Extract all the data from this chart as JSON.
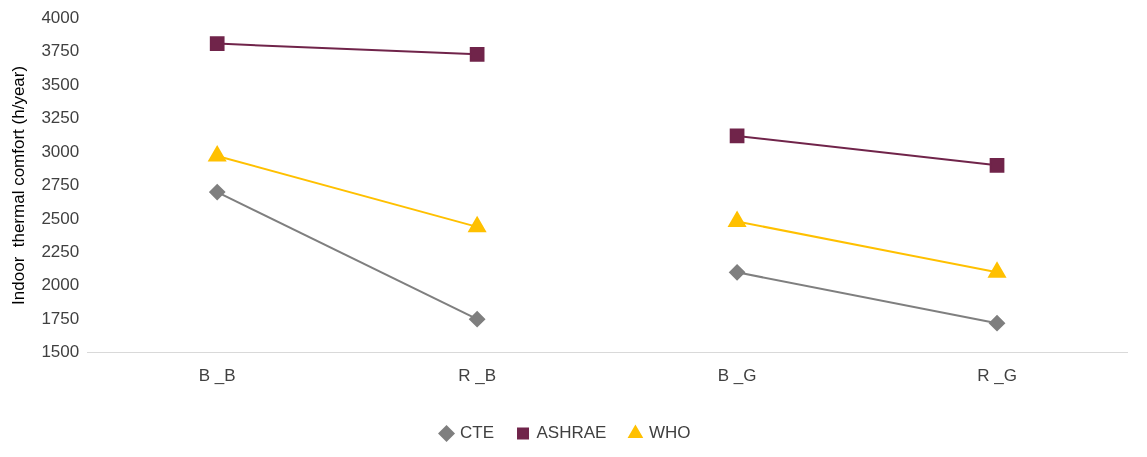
{
  "chart_data": {
    "type": "line",
    "ylabel": "Indoor  thermal comfort (h/year)",
    "categories": [
      "B _B",
      "R _B",
      "B _G",
      "R _G"
    ],
    "series": [
      {
        "name": "CTE",
        "color": "#7f7f7f",
        "marker": "diamond",
        "values": [
          2700,
          1750,
          null,
          null
        ]
      },
      {
        "color": "#7f7f7f",
        "marker": "diamond",
        "values": [
          null,
          null,
          2100,
          1720
        ]
      },
      {
        "name": "ASHRAE",
        "color": "#70244a",
        "marker": "square",
        "values": [
          3810,
          3730,
          null,
          null
        ]
      },
      {
        "color": "#70244a",
        "marker": "square",
        "values": [
          null,
          null,
          3120,
          2900
        ]
      },
      {
        "name": "WHO",
        "color": "#ffc000",
        "marker": "triangle",
        "values": [
          2970,
          2440,
          null,
          null
        ]
      },
      {
        "color": "#ffc000",
        "marker": "triangle",
        "values": [
          null,
          null,
          2480,
          2100
        ]
      }
    ],
    "ylim": [
      1500,
      4000
    ],
    "yticks": [
      1500,
      1750,
      2000,
      2250,
      2500,
      2750,
      3000,
      3250,
      3500,
      3750,
      4000
    ],
    "grid": false,
    "legend": "bottom",
    "line_style": "solid"
  }
}
